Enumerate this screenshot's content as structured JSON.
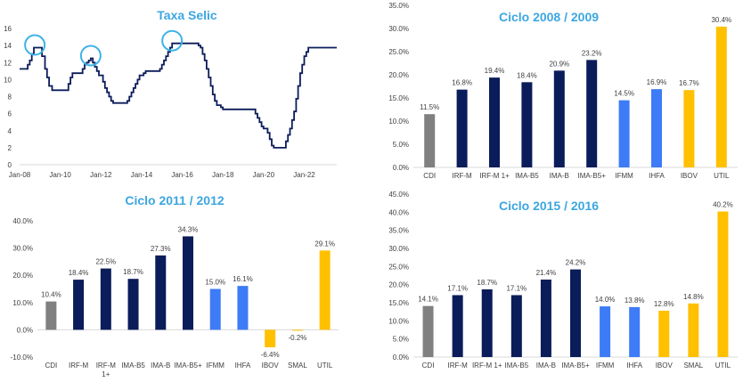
{
  "colors": {
    "navy": "#0B1C5A",
    "blue": "#3D7BF7",
    "gray": "#808080",
    "gold": "#FFC000",
    "title": "#3CA6E0",
    "circle": "#3CB3E6",
    "axis_text": "#404040",
    "grid": "#D9D9D9"
  },
  "chart_data": [
    {
      "id": "selic",
      "type": "line",
      "title": "Taxa Selic",
      "xlabel": "",
      "ylabel": "",
      "ylim": [
        0,
        16
      ],
      "yticks": [
        0,
        2,
        4,
        6,
        8,
        10,
        12,
        14,
        16
      ],
      "xticks": [
        "Jan-08",
        "Jan-10",
        "Jan-12",
        "Jan-14",
        "Jan-16",
        "Jan-18",
        "Jan-20",
        "Jan-22"
      ],
      "xlim": [
        2008.0,
        2023.6
      ],
      "grid": false,
      "step": true,
      "series": [
        {
          "x": [
            2008.0,
            2008.2,
            2008.4,
            2008.5,
            2008.6,
            2008.7,
            2008.8,
            2009.0,
            2009.1,
            2009.25,
            2009.35,
            2009.45,
            2009.6,
            2010.3,
            2010.4,
            2010.5,
            2010.6,
            2010.7,
            2011.0,
            2011.1,
            2011.2,
            2011.3,
            2011.4,
            2011.5,
            2011.6,
            2011.7,
            2011.8,
            2011.9,
            2012.0,
            2012.1,
            2012.2,
            2012.3,
            2012.4,
            2012.5,
            2012.6,
            2012.7,
            2012.8,
            2013.2,
            2013.3,
            2013.4,
            2013.5,
            2013.6,
            2013.7,
            2013.8,
            2013.9,
            2014.0,
            2014.1,
            2014.2,
            2014.3,
            2014.8,
            2014.9,
            2015.0,
            2015.1,
            2015.2,
            2015.3,
            2015.4,
            2015.5,
            2015.6,
            2016.7,
            2016.8,
            2016.9,
            2017.0,
            2017.1,
            2017.2,
            2017.3,
            2017.4,
            2017.5,
            2017.6,
            2017.7,
            2017.8,
            2017.9,
            2018.0,
            2018.2,
            2019.5,
            2019.6,
            2019.7,
            2019.8,
            2019.9,
            2020.0,
            2020.1,
            2020.2,
            2020.3,
            2020.4,
            2020.5,
            2021.0,
            2021.1,
            2021.2,
            2021.3,
            2021.4,
            2021.5,
            2021.6,
            2021.7,
            2021.8,
            2021.9,
            2022.0,
            2022.1,
            2022.2,
            2022.3,
            2022.4,
            2022.5,
            2022.6,
            2022.7,
            2023.6
          ],
          "y": [
            11.25,
            11.25,
            11.75,
            12.25,
            13.0,
            13.75,
            13.75,
            13.75,
            12.75,
            11.25,
            10.25,
            9.25,
            8.75,
            8.75,
            9.5,
            10.25,
            10.75,
            10.75,
            10.75,
            11.25,
            11.75,
            12.0,
            12.25,
            12.5,
            12.0,
            11.5,
            11.0,
            10.5,
            10.5,
            9.75,
            9.0,
            8.5,
            8.0,
            7.5,
            7.25,
            7.25,
            7.25,
            7.25,
            7.5,
            8.0,
            8.5,
            9.0,
            9.5,
            10.0,
            10.5,
            10.5,
            10.75,
            11.0,
            11.0,
            11.0,
            11.25,
            11.75,
            12.25,
            12.75,
            13.25,
            13.75,
            14.25,
            14.25,
            14.25,
            14.0,
            13.75,
            13.0,
            12.25,
            11.25,
            10.25,
            9.25,
            8.25,
            7.5,
            7.0,
            7.0,
            6.75,
            6.5,
            6.5,
            6.5,
            6.0,
            5.5,
            5.0,
            4.5,
            4.25,
            4.25,
            3.75,
            3.0,
            2.25,
            2.0,
            2.0,
            2.75,
            3.5,
            4.25,
            5.25,
            6.25,
            7.75,
            9.25,
            10.75,
            11.75,
            12.75,
            13.25,
            13.75,
            13.75,
            13.75,
            13.75,
            13.75,
            13.75,
            13.75
          ]
        }
      ],
      "annotations": [
        {
          "type": "circle",
          "x": 2008.75,
          "y": 13.75
        },
        {
          "type": "circle",
          "x": 2011.5,
          "y": 12.5
        },
        {
          "type": "circle",
          "x": 2015.5,
          "y": 14.25
        }
      ]
    },
    {
      "id": "c0809",
      "type": "bar",
      "title": "Ciclo 2008 / 2009",
      "xlabel": "",
      "ylabel": "",
      "ylim": [
        0,
        35
      ],
      "yticks": [
        0,
        5,
        10,
        15,
        20,
        25,
        30,
        35
      ],
      "tick_format": "percent1",
      "categories": [
        "CDI",
        "IRF-M",
        "IRF-M 1+",
        "IMA-B5",
        "IMA-B",
        "IMA-B5+",
        "IFMM",
        "IHFA",
        "IBOV",
        "UTIL"
      ],
      "values": [
        11.5,
        16.8,
        19.4,
        18.4,
        20.9,
        23.2,
        14.5,
        16.9,
        16.7,
        30.4
      ],
      "labels": [
        "11.5%",
        "16.8%",
        "19.4%",
        "18.4%",
        "20.9%",
        "23.2%",
        "14.5%",
        "16.9%",
        "16.7%",
        "30.4%"
      ],
      "bar_colors": [
        "gray",
        "navy",
        "navy",
        "navy",
        "navy",
        "navy",
        "blue",
        "blue",
        "gold",
        "gold"
      ]
    },
    {
      "id": "c1112",
      "type": "bar",
      "title": "Ciclo 2011 / 2012",
      "xlabel": "",
      "ylabel": "",
      "ylim": [
        -10,
        40
      ],
      "yticks": [
        -10,
        0,
        10,
        20,
        30,
        40
      ],
      "tick_format": "percent1",
      "categories": [
        "CDI",
        "IRF-M",
        "IRF-M 1+",
        "IMA-B5",
        "IMA-B",
        "IMA-B5+",
        "IFMM",
        "IHFA",
        "IBOV",
        "SMAL",
        "UTIL"
      ],
      "values": [
        10.4,
        18.4,
        22.5,
        18.7,
        27.3,
        34.3,
        15.0,
        16.1,
        -6.4,
        -0.2,
        29.1
      ],
      "labels": [
        "10.4%",
        "18.4%",
        "22.5%",
        "18.7%",
        "27.3%",
        "34.3%",
        "15.0%",
        "16.1%",
        "-6.4%",
        "-0.2%",
        "29.1%"
      ],
      "bar_colors": [
        "gray",
        "navy",
        "navy",
        "navy",
        "navy",
        "navy",
        "blue",
        "blue",
        "gold",
        "gold",
        "gold"
      ]
    },
    {
      "id": "c1516",
      "type": "bar",
      "title": "Ciclo 2015 / 2016",
      "xlabel": "",
      "ylabel": "",
      "ylim": [
        0,
        45
      ],
      "yticks": [
        0,
        5,
        10,
        15,
        20,
        25,
        30,
        35,
        40,
        45
      ],
      "tick_format": "percent1",
      "categories": [
        "CDI",
        "IRF-M",
        "IRF-M 1+",
        "IMA-B5",
        "IMA-B",
        "IMA-B5+",
        "IFMM",
        "IHFA",
        "IBOV",
        "SMAL",
        "UTIL"
      ],
      "values": [
        14.1,
        17.1,
        18.7,
        17.1,
        21.4,
        24.2,
        14.0,
        13.8,
        12.8,
        14.8,
        40.2
      ],
      "labels": [
        "14.1%",
        "17.1%",
        "18.7%",
        "17.1%",
        "21.4%",
        "24.2%",
        "14.0%",
        "13.8%",
        "12.8%",
        "14.8%",
        "40.2%"
      ],
      "bar_colors": [
        "gray",
        "navy",
        "navy",
        "navy",
        "navy",
        "navy",
        "blue",
        "blue",
        "gold",
        "gold",
        "gold"
      ]
    }
  ]
}
